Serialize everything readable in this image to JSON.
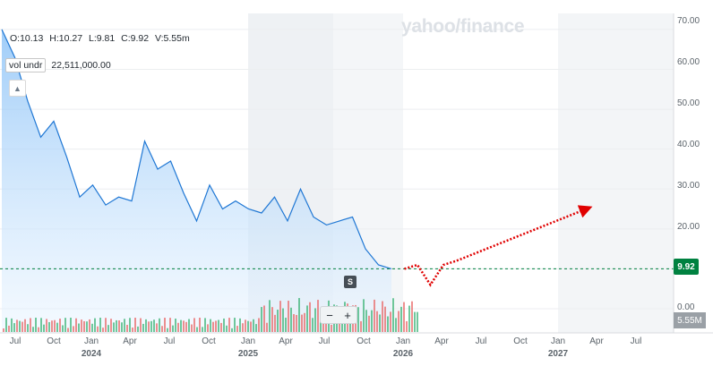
{
  "ohlc": {
    "open": "O:10.13",
    "high": "H:10.27",
    "low": "L:9.81",
    "close": "C:9.92",
    "volume": "V:5.55m"
  },
  "volume_indicator": {
    "label": "vol undr",
    "value": "22,511,000.00"
  },
  "watermark": "yahoo/finance",
  "last_price": "9.92",
  "last_volume": "5.55M",
  "marker": "S",
  "zoom": {
    "minus": "−",
    "plus": "+"
  },
  "colors": {
    "line": "#1f77d4",
    "up": "#41b57b",
    "down": "#e86b6b",
    "price_badge": "#008140",
    "projection": "#e00000"
  },
  "y_axis": {
    "ticks": [
      "70.00",
      "60.00",
      "50.00",
      "40.00",
      "30.00",
      "20.00",
      "0.00"
    ],
    "ylim": [
      0,
      72
    ],
    "price_line": 10
  },
  "x_axis": {
    "months": [
      "Jul",
      "Oct",
      "Jan",
      "Apr",
      "Jul",
      "Oct",
      "Jan",
      "Apr",
      "Jul",
      "Oct",
      "Jan",
      "Apr",
      "Jul",
      "Oct",
      "Jan",
      "Apr",
      "Jul"
    ],
    "years": [
      "2024",
      "2025",
      "2026",
      "2027"
    ]
  },
  "chart_data": {
    "type": "line",
    "x": [
      "2023-07",
      "2023-08",
      "2023-09",
      "2023-10",
      "2023-11",
      "2023-12",
      "2024-01",
      "2024-02",
      "2024-03",
      "2024-04",
      "2024-05",
      "2024-06",
      "2024-07",
      "2024-08",
      "2024-09",
      "2024-10",
      "2024-11",
      "2024-12",
      "2025-01",
      "2025-02",
      "2025-03",
      "2025-04",
      "2025-05",
      "2025-06",
      "2025-07",
      "2025-08",
      "2025-09",
      "2025-10",
      "2025-11",
      "2025-12",
      "2026-01"
    ],
    "series": [
      {
        "values": [
          70,
          63,
          52,
          43,
          47,
          38,
          28,
          31,
          26,
          28,
          27,
          42,
          35,
          37,
          29,
          22,
          31,
          25,
          27,
          25,
          24,
          28,
          22,
          30,
          23,
          21,
          22,
          23,
          15,
          11,
          10
        ]
      }
    ],
    "projection": {
      "x": [
        "2026-02",
        "2026-03",
        "2026-04",
        "2026-05",
        "2026-06",
        "2027-04"
      ],
      "values": [
        10,
        11,
        6,
        11,
        12,
        25
      ]
    },
    "ylim": [
      0,
      72
    ],
    "grid": true
  }
}
